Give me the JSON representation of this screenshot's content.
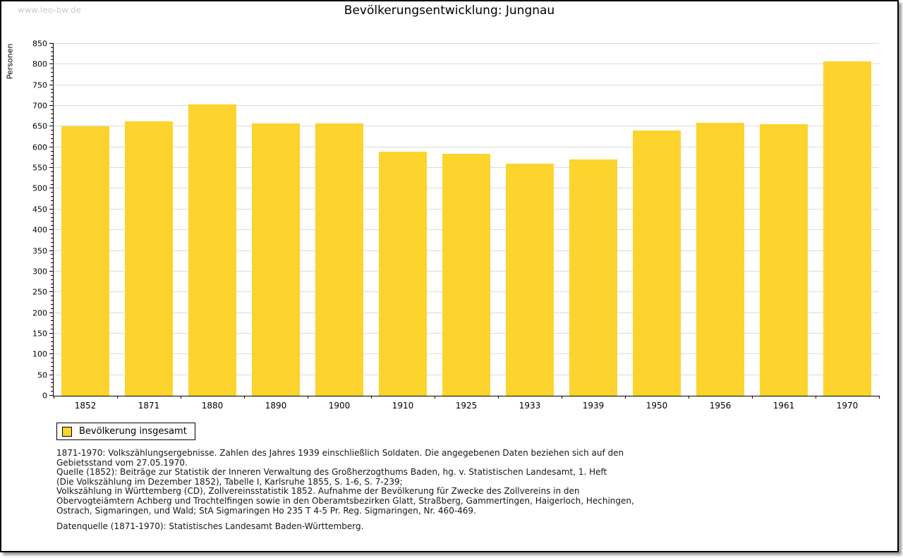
{
  "page": {
    "watermark": "www.leo-bw.de",
    "title": "Bevölkerungsentwicklung: Jungnau"
  },
  "chart_data": {
    "type": "bar",
    "title": "Bevölkerungsentwicklung: Jungnau",
    "xlabel": "",
    "ylabel": "Personen",
    "categories": [
      "1852",
      "1871",
      "1880",
      "1890",
      "1900",
      "1910",
      "1925",
      "1933",
      "1939",
      "1950",
      "1956",
      "1961",
      "1970"
    ],
    "series": [
      {
        "name": "Bevölkerung insgesamt",
        "values": [
          650,
          663,
          704,
          657,
          657,
          590,
          584,
          561,
          571,
          641,
          659,
          656,
          807
        ]
      }
    ],
    "ylim": [
      0,
      850
    ],
    "ytick_step": 50,
    "y_minor_step": 10,
    "grid": true,
    "legend_position": "below-left",
    "bar_color": "#FDD32D"
  },
  "legend": {
    "label": "Bevölkerung insgesamt",
    "swatch_color": "#FDD32D"
  },
  "footnotes": {
    "block1_lines": [
      "1871-1970: Volkszählungsergebnisse. Zahlen des Jahres 1939 einschließlich Soldaten. Die angegebenen Daten beziehen sich auf den",
      "Gebietsstand vom 27.05.1970.",
      "Quelle (1852): Beiträge zur Statistik der Inneren Verwaltung des Großherzogthums Baden, hg. v. Statistischen Landesamt, 1. Heft",
      "(Die Volkszählung im Dezember 1852), Tabelle I, Karlsruhe 1855, S. 1-6, S. 7-239;",
      "Volkszählung in Württemberg (CD), Zollvereinsstatistik 1852. Aufnahme der Bevölkerung für Zwecke des Zollvereins in den",
      "Obervogteiämtern Achberg und Trochtelfingen sowie in den Oberamtsbezirken Glatt, Straßberg, Gammertingen, Haigerloch, Hechingen,",
      "Ostrach, Sigmaringen, und Wald; StA Sigmaringen Ho 235 T 4-5 Pr. Reg. Sigmaringen, Nr. 460-469."
    ],
    "block2_lines": [
      "Datenquelle (1871-1970): Statistisches Landesamt Baden-Württemberg."
    ]
  },
  "colors": {
    "bar": "#FDD32D",
    "gridline": "#DCDCDC",
    "axis": "#000000",
    "watermark": "#C8C8C8",
    "shadow": "#9E9E9E"
  }
}
